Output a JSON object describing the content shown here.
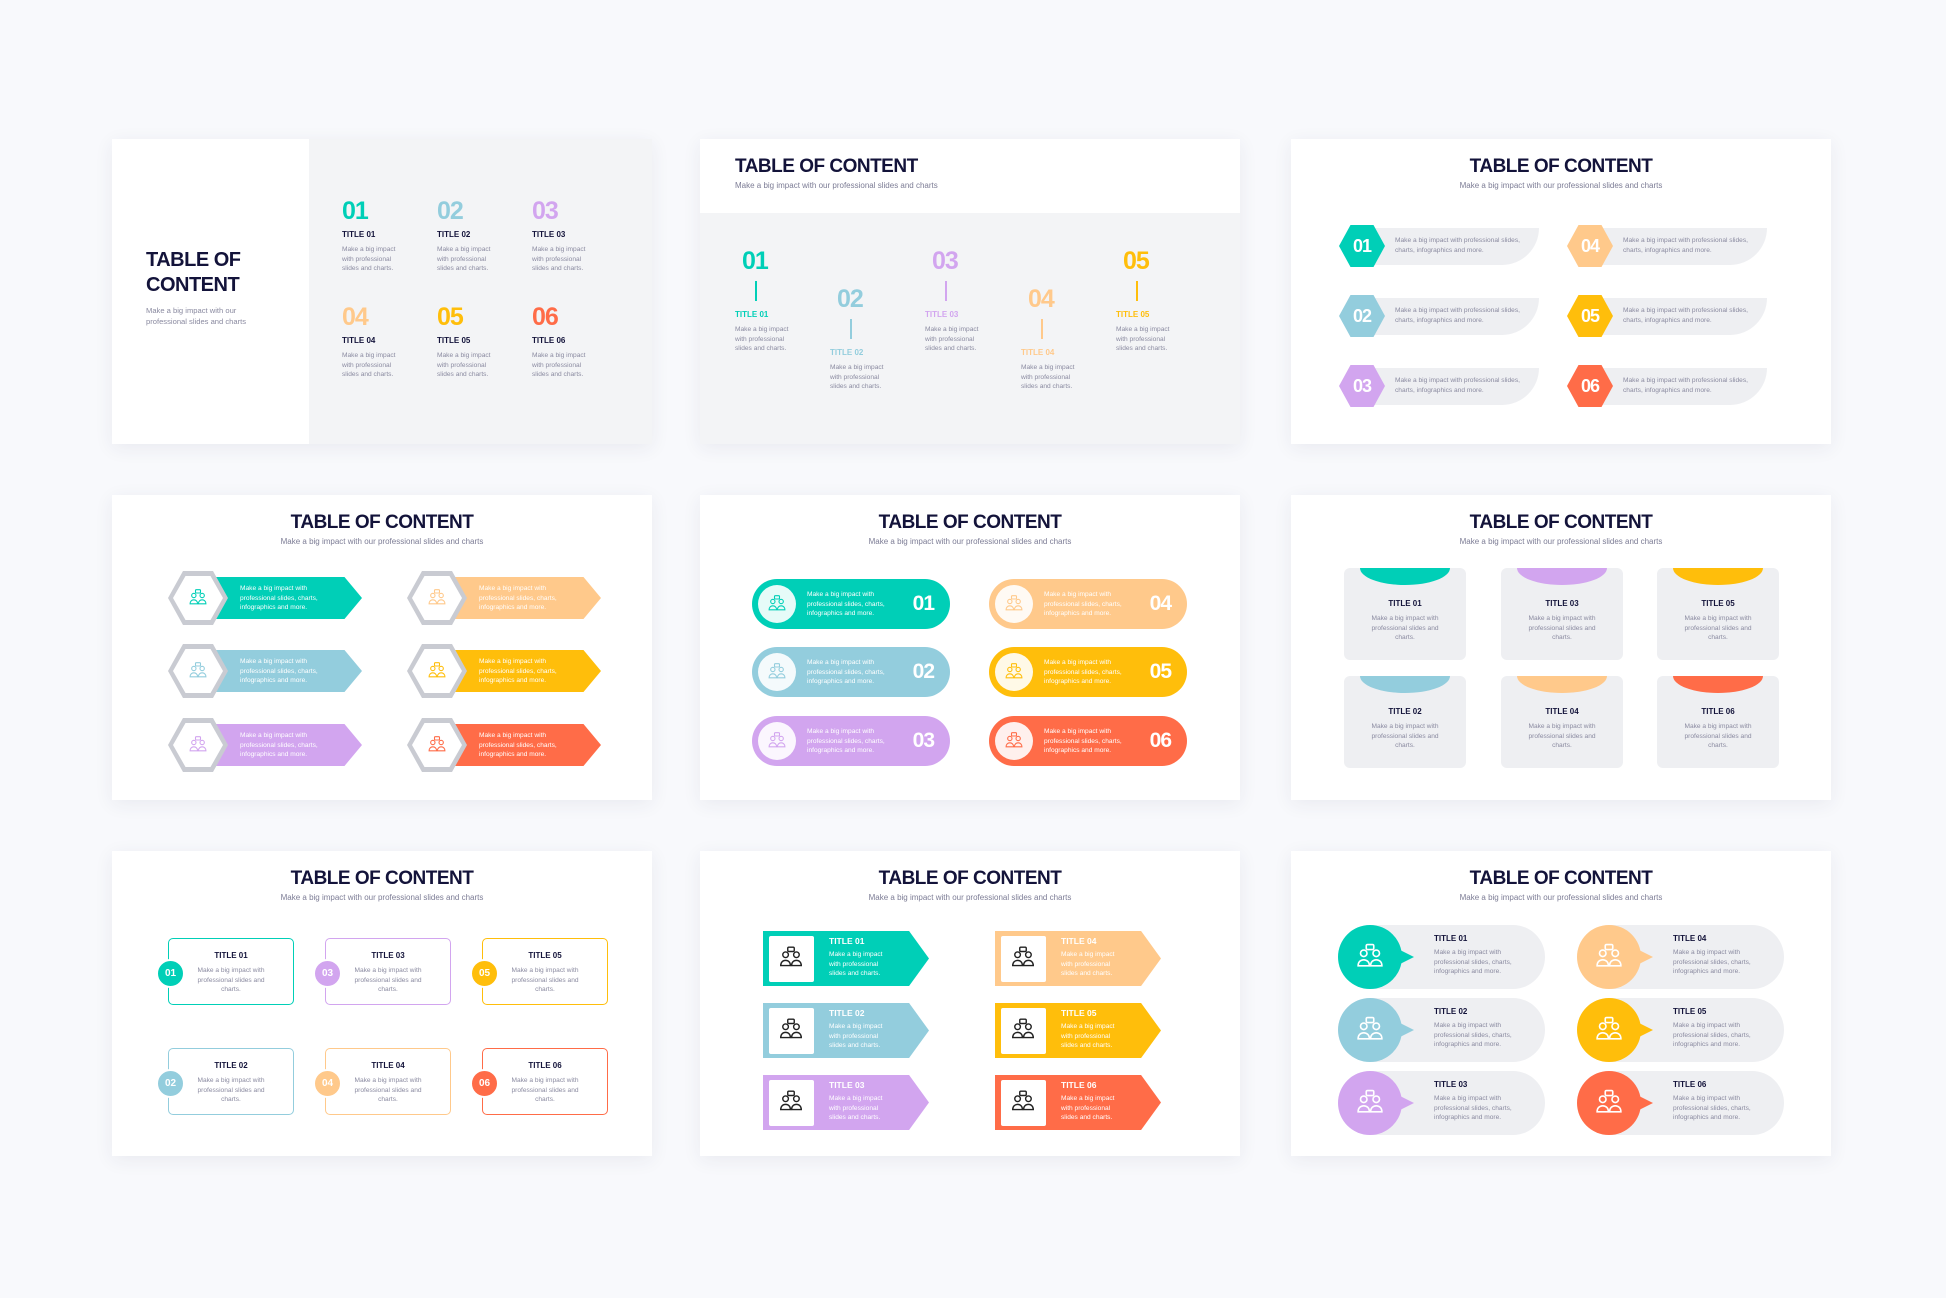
{
  "colors": {
    "teal": "#00CFB7",
    "blue": "#93CDDD",
    "purple": "#D2A5EF",
    "peach": "#FFC98B",
    "yellow": "#FFBE0B",
    "orange": "#FF6C48",
    "navy": "#13133A",
    "panel": "#F3F4F6"
  },
  "slides": [
    {
      "title_line1": "TABLE OF",
      "title_line2": "CONTENT",
      "subtitle": "Make a big impact with our professional slides and charts",
      "items": [
        {
          "num": "01",
          "title": "TITLE 01",
          "desc": "Make a big impact with professional slides and charts."
        },
        {
          "num": "02",
          "title": "TITLE 02",
          "desc": "Make a big impact with professional slides and charts."
        },
        {
          "num": "03",
          "title": "TITLE 03",
          "desc": "Make a big impact with professional slides and charts."
        },
        {
          "num": "04",
          "title": "TITLE 04",
          "desc": "Make a big impact with professional slides and charts."
        },
        {
          "num": "05",
          "title": "TITLE 05",
          "desc": "Make a big impact with professional slides and charts."
        },
        {
          "num": "06",
          "title": "TITLE 06",
          "desc": "Make a big impact with professional slides and charts."
        }
      ]
    },
    {
      "title": "TABLE OF CONTENT",
      "subtitle": "Make a big impact with our professional slides and charts",
      "items": [
        {
          "num": "01",
          "title": "TITLE 01",
          "desc": "Make a big impact with professional slides and charts."
        },
        {
          "num": "02",
          "title": "TITLE 02",
          "desc": "Make a big impact with professional slides and charts."
        },
        {
          "num": "03",
          "title": "TITLE 03",
          "desc": "Make a big impact with professional slides and charts."
        },
        {
          "num": "04",
          "title": "TITLE 04",
          "desc": "Make a big impact with professional slides and charts."
        },
        {
          "num": "05",
          "title": "TITLE 05",
          "desc": "Make a big impact with professional slides and charts."
        }
      ]
    },
    {
      "title": "TABLE OF CONTENT",
      "subtitle": "Make a big impact with our professional slides and charts",
      "items": [
        {
          "num": "01",
          "desc": "Make a big impact with professional slides, charts, infographics and more."
        },
        {
          "num": "02",
          "desc": "Make a big impact with professional slides, charts, infographics and more."
        },
        {
          "num": "03",
          "desc": "Make a big impact with professional slides, charts, infographics and more."
        },
        {
          "num": "04",
          "desc": "Make a big impact with professional slides, charts, infographics and more."
        },
        {
          "num": "05",
          "desc": "Make a big impact with professional slides, charts, infographics and more."
        },
        {
          "num": "06",
          "desc": "Make a big impact with professional slides, charts, infographics and more."
        }
      ]
    },
    {
      "title": "TABLE OF CONTENT",
      "subtitle": "Make a big impact with our professional slides and charts",
      "items": [
        {
          "icon": "idea-person-icon",
          "desc": "Make a big impact with professional slides, charts, infographics and more."
        },
        {
          "icon": "puzzle-icon",
          "desc": "Make a big impact with professional slides, charts, infographics and more."
        },
        {
          "icon": "network-icon",
          "desc": "Make a big impact with professional slides, charts, infographics and more."
        },
        {
          "icon": "team-icon",
          "desc": "Make a big impact with professional slides, charts, infographics and more."
        },
        {
          "icon": "presentation-icon",
          "desc": "Make a big impact with professional slides, charts, infographics and more."
        },
        {
          "icon": "user-icon",
          "desc": "Make a big impact with professional slides, charts, infographics and more."
        }
      ]
    },
    {
      "title": "TABLE OF CONTENT",
      "subtitle": "Make a big impact with our professional slides and charts",
      "items": [
        {
          "num": "01",
          "icon": "person-icon",
          "desc": "Make a big impact with professional slides, charts, infographics and more."
        },
        {
          "num": "02",
          "icon": "meeting-icon",
          "desc": "Make a big impact with professional slides, charts, infographics and more."
        },
        {
          "num": "03",
          "icon": "group-icon",
          "desc": "Make a big impact with professional slides, charts, infographics and more."
        },
        {
          "num": "04",
          "icon": "network-icon",
          "desc": "Make a big impact with professional slides, charts, infographics and more."
        },
        {
          "num": "05",
          "icon": "growth-icon",
          "desc": "Make a big impact with professional slides, charts, infographics and more."
        },
        {
          "num": "06",
          "icon": "idea-icon",
          "desc": "Make a big impact with professional slides, charts, infographics and more."
        }
      ]
    },
    {
      "title": "TABLE OF CONTENT",
      "subtitle": "Make a big impact with our professional slides and charts",
      "items": [
        {
          "title": "TITLE 01",
          "desc": "Make a big impact with professional slides and charts."
        },
        {
          "title": "TITLE 02",
          "desc": "Make a big impact with professional slides and charts."
        },
        {
          "title": "TITLE 03",
          "desc": "Make a big impact with professional slides and charts."
        },
        {
          "title": "TITLE 04",
          "desc": "Make a big impact with professional slides and charts."
        },
        {
          "title": "TITLE 05",
          "desc": "Make a big impact with professional slides and charts."
        },
        {
          "title": "TITLE 06",
          "desc": "Make a big impact with professional slides and charts."
        }
      ]
    },
    {
      "title": "TABLE OF CONTENT",
      "subtitle": "Make a big impact with our professional slides and charts",
      "items": [
        {
          "num": "01",
          "title": "TITLE 01",
          "desc": "Make a big impact with professional slides and charts."
        },
        {
          "num": "02",
          "title": "TITLE 02",
          "desc": "Make a big impact with professional slides and charts."
        },
        {
          "num": "03",
          "title": "TITLE 03",
          "desc": "Make a big impact with professional slides and charts."
        },
        {
          "num": "04",
          "title": "TITLE 04",
          "desc": "Make a big impact with professional slides and charts."
        },
        {
          "num": "05",
          "title": "TITLE 05",
          "desc": "Make a big impact with professional slides and charts."
        },
        {
          "num": "06",
          "title": "TITLE 06",
          "desc": "Make a big impact with professional slides and charts."
        }
      ]
    },
    {
      "title": "TABLE OF CONTENT",
      "subtitle": "Make a big impact with our professional slides and charts",
      "items": [
        {
          "icon": "chat-team-icon",
          "title": "TITLE 01",
          "desc": "Make a big impact with professional slides and charts."
        },
        {
          "icon": "hierarchy-icon",
          "title": "TITLE 02",
          "desc": "Make a big impact with professional slides and charts."
        },
        {
          "icon": "user-circle-icon",
          "title": "TITLE 03",
          "desc": "Make a big impact with professional slides and charts."
        },
        {
          "icon": "crowd-icon",
          "title": "TITLE 04",
          "desc": "Make a big impact with professional slides and charts."
        },
        {
          "icon": "meeting-table-icon",
          "title": "TITLE 05",
          "desc": "Make a big impact with professional slides and charts."
        },
        {
          "icon": "discussion-icon",
          "title": "TITLE 06",
          "desc": "Make a big impact with professional slides and charts."
        }
      ]
    },
    {
      "title": "TABLE OF CONTENT",
      "subtitle": "Make a big impact with our professional slides and charts",
      "items": [
        {
          "icon": "presentation-icon",
          "title": "TITLE 01",
          "desc": "Make a big impact with professional slides, charts, infographics and more."
        },
        {
          "icon": "presentation-board-icon",
          "title": "TITLE 02",
          "desc": "Make a big impact with professional slides, charts, infographics and more."
        },
        {
          "icon": "hierarchy-icon",
          "title": "TITLE 03",
          "desc": "Make a big impact with professional slides, charts, infographics and more."
        },
        {
          "icon": "speaker-icon",
          "title": "TITLE 04",
          "desc": "Make a big impact with professional slides, charts, infographics and more."
        },
        {
          "icon": "idea-team-icon",
          "title": "TITLE 05",
          "desc": "Make a big impact with professional slides, charts, infographics and more."
        },
        {
          "icon": "chat-person-icon",
          "title": "TITLE 06",
          "desc": "Make a big impact with professional slides, charts, infographics and more."
        }
      ]
    }
  ]
}
